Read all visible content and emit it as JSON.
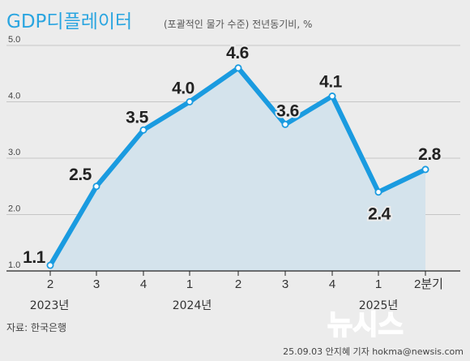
{
  "chart_data": {
    "type": "line",
    "title": "GDP디플레이터",
    "subtitle": "(포괄적인 물가 수준) 전년동기비, %",
    "categories": [
      "2",
      "3",
      "4",
      "1",
      "2",
      "3",
      "4",
      "1",
      "2분기"
    ],
    "year_labels": [
      "2023년",
      "2024년",
      "2025년"
    ],
    "series": [
      {
        "values": [
          1.1,
          2.5,
          3.5,
          4.0,
          4.6,
          3.6,
          4.1,
          2.4,
          2.8
        ]
      }
    ],
    "data_labels": [
      "1.1",
      "2.5",
      "3.5",
      "4.0",
      "4.6",
      "3.6",
      "4.1",
      "2.4",
      "2.8"
    ],
    "yticks": [
      "1.0",
      "2.0",
      "3.0",
      "4.0",
      "5.0"
    ],
    "ylim": [
      1.0,
      5.0
    ],
    "grid": true,
    "line_color": "#1a9be0",
    "area_color": "#d4e3ec"
  },
  "source": "자료: 한국은행",
  "credit": "25.09.03 안지혜 기자 hokma@newsis.com",
  "logo_text": "뉴시스"
}
